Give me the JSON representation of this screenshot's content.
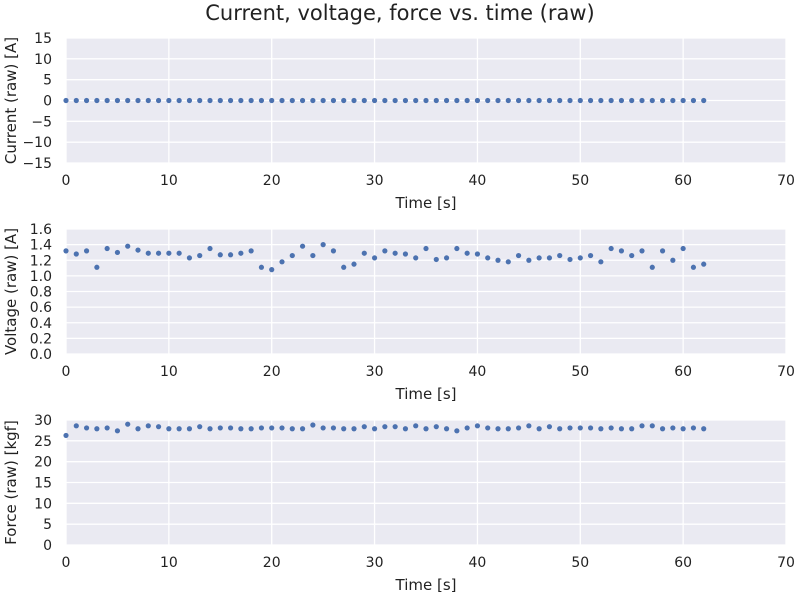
{
  "figure": {
    "title": "Current, voltage, force vs. time (raw)"
  },
  "chart_data": [
    {
      "type": "scatter",
      "xlabel": "Time [s]",
      "ylabel": "Current (raw) [A]",
      "xlim": [
        0,
        70
      ],
      "ylim": [
        -15,
        15
      ],
      "xticks": [
        0,
        10,
        20,
        30,
        40,
        50,
        60,
        70
      ],
      "yticks": [
        -15,
        -10,
        -5,
        0,
        5,
        10,
        15
      ],
      "grid": true,
      "series": [
        {
          "color": "#4c72b0",
          "x": [
            0,
            1,
            2,
            3,
            4,
            5,
            6,
            7,
            8,
            9,
            10,
            11,
            12,
            13,
            14,
            15,
            16,
            17,
            18,
            19,
            20,
            21,
            22,
            23,
            24,
            25,
            26,
            27,
            28,
            29,
            30,
            31,
            32,
            33,
            34,
            35,
            36,
            37,
            38,
            39,
            40,
            41,
            42,
            43,
            44,
            45,
            46,
            47,
            48,
            49,
            50,
            51,
            52,
            53,
            54,
            55,
            56,
            57,
            58,
            59,
            60,
            61,
            62
          ],
          "y": [
            0,
            0,
            0,
            0,
            0,
            0,
            0,
            0,
            0,
            0,
            0,
            0,
            0,
            0,
            0,
            0,
            0,
            0,
            0,
            0,
            0,
            0,
            0,
            0,
            0,
            0,
            0,
            0,
            0,
            0,
            0,
            0,
            0,
            0,
            0,
            0,
            0,
            0,
            0,
            0,
            0,
            0,
            0,
            0,
            0,
            0,
            0,
            0,
            0,
            0,
            0,
            0,
            0,
            0,
            0,
            0,
            0,
            0,
            0,
            0,
            0,
            0,
            0
          ]
        }
      ]
    },
    {
      "type": "scatter",
      "xlabel": "Time [s]",
      "ylabel": "Voltage (raw) [A]",
      "xlim": [
        0,
        70
      ],
      "ylim": [
        0.0,
        1.6
      ],
      "xticks": [
        0,
        10,
        20,
        30,
        40,
        50,
        60,
        70
      ],
      "yticks": [
        0.0,
        0.2,
        0.4,
        0.6,
        0.8,
        1.0,
        1.2,
        1.4,
        1.6
      ],
      "grid": true,
      "series": [
        {
          "color": "#4c72b0",
          "x": [
            0,
            1,
            2,
            3,
            4,
            5,
            6,
            7,
            8,
            9,
            10,
            11,
            12,
            13,
            14,
            15,
            16,
            17,
            18,
            19,
            20,
            21,
            22,
            23,
            24,
            25,
            26,
            27,
            28,
            29,
            30,
            31,
            32,
            33,
            34,
            35,
            36,
            37,
            38,
            39,
            40,
            41,
            42,
            43,
            44,
            45,
            46,
            47,
            48,
            49,
            50,
            51,
            52,
            53,
            54,
            55,
            56,
            57,
            58,
            59,
            60,
            61,
            62
          ],
          "y": [
            1.32,
            1.28,
            1.32,
            1.11,
            1.35,
            1.3,
            1.38,
            1.33,
            1.29,
            1.29,
            1.29,
            1.29,
            1.23,
            1.26,
            1.35,
            1.27,
            1.27,
            1.29,
            1.32,
            1.11,
            1.08,
            1.18,
            1.26,
            1.38,
            1.26,
            1.4,
            1.32,
            1.11,
            1.15,
            1.29,
            1.23,
            1.32,
            1.29,
            1.28,
            1.23,
            1.35,
            1.21,
            1.23,
            1.35,
            1.29,
            1.28,
            1.23,
            1.2,
            1.18,
            1.26,
            1.2,
            1.23,
            1.23,
            1.26,
            1.21,
            1.23,
            1.26,
            1.18,
            1.35,
            1.32,
            1.26,
            1.32,
            1.11,
            1.32,
            1.2,
            1.35,
            1.11,
            1.15
          ]
        }
      ]
    },
    {
      "type": "scatter",
      "xlabel": "Time [s]",
      "ylabel": "Force (raw) [kgf]",
      "xlim": [
        0,
        70
      ],
      "ylim": [
        0,
        30
      ],
      "xticks": [
        0,
        10,
        20,
        30,
        40,
        50,
        60,
        70
      ],
      "yticks": [
        0,
        5,
        10,
        15,
        20,
        25,
        30
      ],
      "grid": true,
      "series": [
        {
          "color": "#4c72b0",
          "x": [
            0,
            1,
            2,
            3,
            4,
            5,
            6,
            7,
            8,
            9,
            10,
            11,
            12,
            13,
            14,
            15,
            16,
            17,
            18,
            19,
            20,
            21,
            22,
            23,
            24,
            25,
            26,
            27,
            28,
            29,
            30,
            31,
            32,
            33,
            34,
            35,
            36,
            37,
            38,
            39,
            40,
            41,
            42,
            43,
            44,
            45,
            46,
            47,
            48,
            49,
            50,
            51,
            52,
            53,
            54,
            55,
            56,
            57,
            58,
            59,
            60,
            61,
            62
          ],
          "y": [
            26.3,
            28.6,
            28.1,
            27.9,
            28.1,
            27.4,
            29.0,
            27.9,
            28.6,
            28.4,
            27.9,
            27.9,
            27.9,
            28.4,
            27.9,
            28.1,
            28.1,
            27.9,
            27.9,
            28.1,
            28.1,
            28.1,
            27.9,
            27.9,
            28.8,
            28.1,
            28.1,
            27.9,
            27.9,
            28.4,
            27.9,
            28.4,
            28.4,
            27.9,
            28.6,
            27.9,
            28.4,
            27.9,
            27.4,
            28.1,
            28.6,
            28.1,
            27.9,
            27.9,
            28.1,
            28.6,
            27.9,
            28.4,
            27.9,
            28.1,
            28.1,
            28.1,
            27.9,
            28.1,
            27.9,
            27.9,
            28.6,
            28.6,
            27.9,
            28.1,
            27.9,
            28.1,
            27.9
          ]
        }
      ]
    }
  ]
}
